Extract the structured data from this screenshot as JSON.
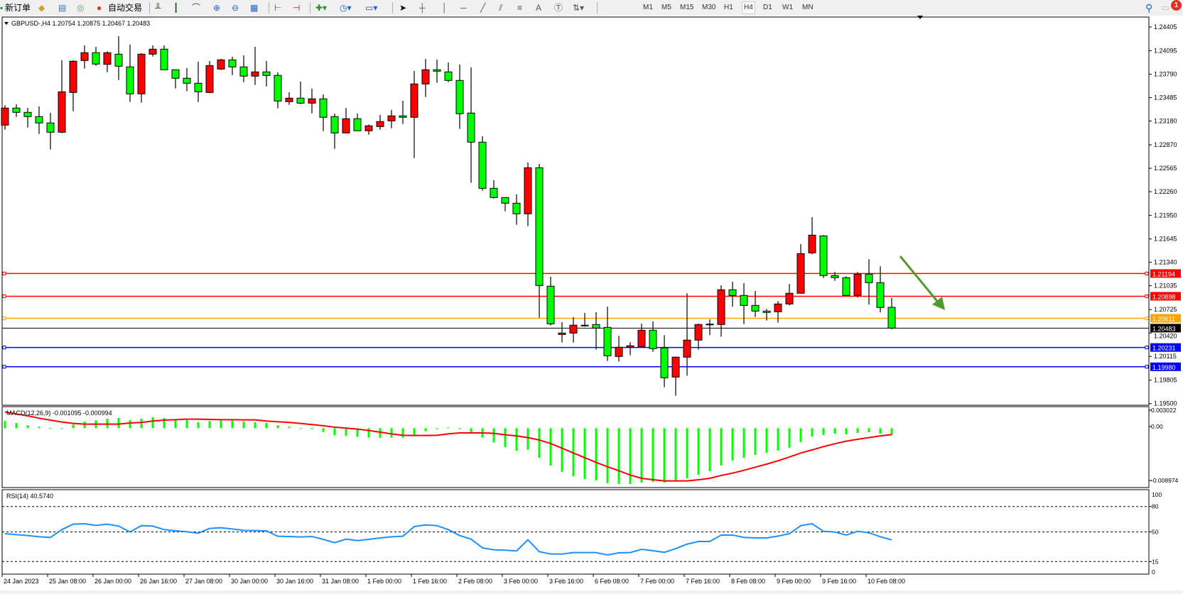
{
  "toolbar": {
    "new_order": "新订单",
    "auto_trade": "自动交易",
    "timeframes": [
      "M1",
      "M5",
      "M15",
      "M30",
      "H1",
      "H4",
      "D1",
      "W1",
      "MN"
    ],
    "active_timeframe": "H4",
    "notification_count": "1",
    "icons": [
      "new-order-icon",
      "market-watch-icon",
      "navigator-icon",
      "signals-icon",
      "auto-trade-icon",
      "bar-chart-icon",
      "candlestick-icon",
      "line-chart-icon",
      "zoom-in-icon",
      "zoom-out-icon",
      "tile-windows-icon",
      "chart-shift-icon",
      "autoscroll-icon",
      "indicators-icon",
      "periods-icon",
      "templates-icon",
      "cursor-icon",
      "crosshair-icon",
      "vertical-line-icon",
      "horizontal-line-icon",
      "trendline-icon",
      "equidistant-channel-icon",
      "fibonacci-icon",
      "text-icon",
      "text-label-icon",
      "arrows-icon",
      "search-icon",
      "chat-icon"
    ]
  },
  "chart": {
    "symbol_info": "GBPUSD-,H4  1.20754 1.20875 1.20467 1.20483"
  },
  "colors": {
    "bull": "#ff0000",
    "bear": "#00ff00",
    "macd_histogram": "#00ff00",
    "macd_signal": "#ff0000",
    "rsi": "#1e90ff",
    "arrow": "#4f9a2f"
  },
  "chart_data": {
    "type": "candlestick",
    "candle_colors": "red = rising, green = falling",
    "ylim": [
      1.195,
      1.24405
    ],
    "price_ticks": [
      "1.24405",
      "1.24095",
      "1.23790",
      "1.23485",
      "1.23180",
      "1.22870",
      "1.22565",
      "1.22260",
      "1.21950",
      "1.21645",
      "1.21340",
      "1.21035",
      "1.20725",
      "1.20420",
      "1.20115",
      "1.19805",
      "1.19500"
    ],
    "ohlc": [
      [
        1.23127,
        1.23386,
        1.23068,
        1.23349
      ],
      [
        1.23349,
        1.23398,
        1.23234,
        1.23293
      ],
      [
        1.23293,
        1.23351,
        1.23095,
        1.23238
      ],
      [
        1.23238,
        1.2337,
        1.23012,
        1.23155
      ],
      [
        1.23155,
        1.23287,
        1.22809,
        1.23034
      ],
      [
        1.23034,
        1.23971,
        1.23022,
        1.23561
      ],
      [
        1.23552,
        1.23971,
        1.23308,
        1.23959
      ],
      [
        1.23968,
        1.24165,
        1.23863,
        1.2407
      ],
      [
        1.2407,
        1.24146,
        1.239,
        1.23922
      ],
      [
        1.23918,
        1.24088,
        1.23816,
        1.2407
      ],
      [
        1.24051,
        1.24285,
        1.23715,
        1.23894
      ],
      [
        1.23885,
        1.24174,
        1.23428,
        1.23534
      ],
      [
        1.23534,
        1.24063,
        1.23419,
        1.24051
      ],
      [
        1.24051,
        1.24165,
        1.2402,
        1.24116
      ],
      [
        1.24116,
        1.24165,
        1.23848,
        1.23848
      ],
      [
        1.23848,
        1.23848,
        1.23604,
        1.23737
      ],
      [
        1.23737,
        1.23869,
        1.23567,
        1.23672
      ],
      [
        1.23672,
        1.23952,
        1.23428,
        1.23561
      ],
      [
        1.23552,
        1.23961,
        1.23543,
        1.23903
      ],
      [
        1.23857,
        1.23989,
        1.23844,
        1.23977
      ],
      [
        1.23977,
        1.24017,
        1.23779,
        1.23885
      ],
      [
        1.23885,
        1.24035,
        1.23687,
        1.23765
      ],
      [
        1.23765,
        1.24146,
        1.2365,
        1.2382
      ],
      [
        1.2382,
        1.23961,
        1.23631,
        1.23774
      ],
      [
        1.23774,
        1.23814,
        1.23345,
        1.23441
      ],
      [
        1.23432,
        1.23555,
        1.23391,
        1.23478
      ],
      [
        1.23478,
        1.23693,
        1.234,
        1.23413
      ],
      [
        1.23413,
        1.23601,
        1.2328,
        1.23469
      ],
      [
        1.23469,
        1.23527,
        1.23049,
        1.23229
      ],
      [
        1.23238,
        1.23278,
        1.22818,
        1.23025
      ],
      [
        1.23025,
        1.23351,
        1.23016,
        1.2321
      ],
      [
        1.2321,
        1.23278,
        1.23053,
        1.23053
      ],
      [
        1.23053,
        1.23136,
        1.23003,
        1.23118
      ],
      [
        1.23108,
        1.23259,
        1.23068,
        1.23173
      ],
      [
        1.23182,
        1.23324,
        1.23086,
        1.23247
      ],
      [
        1.23247,
        1.23444,
        1.23142,
        1.23229
      ],
      [
        1.23229,
        1.23832,
        1.22698,
        1.23663
      ],
      [
        1.23663,
        1.23989,
        1.23493,
        1.23848
      ],
      [
        1.23848,
        1.2398,
        1.23678,
        1.23829
      ],
      [
        1.2382,
        1.23943,
        1.23687,
        1.23709
      ],
      [
        1.23709,
        1.23915,
        1.23077,
        1.23275
      ],
      [
        1.23284,
        1.23878,
        1.22375,
        1.22905
      ],
      [
        1.22905,
        1.22982,
        1.22273,
        1.22304
      ],
      [
        1.22304,
        1.22409,
        1.22171,
        1.22184
      ],
      [
        1.22184,
        1.22184,
        1.22005,
        1.2211
      ],
      [
        1.2211,
        1.22224,
        1.21829,
        1.21972
      ],
      [
        1.21972,
        1.2264,
        1.21811,
        1.22572
      ],
      [
        1.22572,
        1.22621,
        1.20619,
        1.21038
      ],
      [
        1.21029,
        1.21152,
        1.20517,
        1.20539
      ],
      [
        1.204,
        1.2056,
        1.20295,
        1.20419
      ],
      [
        1.20419,
        1.20625,
        1.20295,
        1.20521
      ],
      [
        1.20521,
        1.20681,
        1.20502,
        1.20521
      ],
      [
        1.2053,
        1.2069,
        1.20203,
        1.20484
      ],
      [
        1.20493,
        1.20764,
        1.20055,
        1.20123
      ],
      [
        1.20114,
        1.20382,
        1.20049,
        1.20234
      ],
      [
        1.20234,
        1.20299,
        1.20129,
        1.20253
      ],
      [
        1.20243,
        1.20542,
        1.20234,
        1.20456
      ],
      [
        1.20456,
        1.2057,
        1.20175,
        1.20216
      ],
      [
        1.20225,
        1.20391,
        1.19713,
        1.19837
      ],
      [
        1.19846,
        1.20114,
        1.19602,
        1.20105
      ],
      [
        1.20105,
        1.20937,
        1.19864,
        1.20327
      ],
      [
        1.20327,
        1.20542,
        1.20203,
        1.2053
      ],
      [
        1.20526,
        1.20597,
        1.20391,
        1.20535
      ],
      [
        1.2053,
        1.21041,
        1.20371,
        1.20983
      ],
      [
        1.20983,
        1.21087,
        1.20761,
        1.20909
      ],
      [
        1.20909,
        1.21069,
        1.20535,
        1.20779
      ],
      [
        1.20779,
        1.20967,
        1.20628,
        1.20705
      ],
      [
        1.20705,
        1.20733,
        1.20582,
        1.20687
      ],
      [
        1.20696,
        1.20835,
        1.20554,
        1.20798
      ],
      [
        1.20798,
        1.21059,
        1.20779,
        1.20937
      ],
      [
        1.20937,
        1.21577,
        1.20937,
        1.21454
      ],
      [
        1.21463,
        1.21928,
        1.21445,
        1.21694
      ],
      [
        1.21685,
        1.21694,
        1.21136,
        1.21168
      ],
      [
        1.21168,
        1.21214,
        1.21099,
        1.2114
      ],
      [
        1.2114,
        1.21158,
        1.20909,
        1.20909
      ],
      [
        1.20909,
        1.21214,
        1.20881,
        1.21186
      ],
      [
        1.21186,
        1.2138,
        1.20789,
        1.21075
      ],
      [
        1.21075,
        1.21288,
        1.20687,
        1.20752
      ],
      [
        1.20754,
        1.20875,
        1.20467,
        1.20483
      ]
    ],
    "horizontal_lines": [
      {
        "price": "1.21194",
        "color": "#ff0000"
      },
      {
        "price": "1.20898",
        "color": "#ff0000"
      },
      {
        "price": "1.20611",
        "color": "#ffa500"
      },
      {
        "price": "1.20231",
        "color": "#0000ff"
      },
      {
        "price": "1.19980",
        "color": "#0000ff"
      }
    ],
    "current_price": "1.20483",
    "time_labels": [
      "24 Jan 2023",
      "25 Jan 08:00",
      "26 Jan 00:00",
      "26 Jan 16:00",
      "27 Jan 08:00",
      "30 Jan 00:00",
      "30 Jan 16:00",
      "31 Jan 08:00",
      "1 Feb 00:00",
      "1 Feb 16:00",
      "2 Feb 08:00",
      "3 Feb 00:00",
      "3 Feb 16:00",
      "6 Feb 08:00",
      "7 Feb 00:00",
      "7 Feb 16:00",
      "8 Feb 08:00",
      "9 Feb 00:00",
      "9 Feb 16:00",
      "10 Feb 08:00"
    ],
    "macd": {
      "label": "MACD(12,26,9) -0.001095 -0.000994",
      "axis_labels": [
        "0.003022",
        "0.00",
        "-0.008974"
      ],
      "histogram": [
        0.0011,
        0.0008,
        0.00044,
        0.00022,
        4e-05,
        0,
        0.00055,
        0.00102,
        0.0012,
        0.00146,
        0.00157,
        0.00124,
        0.00146,
        0.00168,
        0.00157,
        0.00139,
        0.00124,
        0.00091,
        0.0011,
        0.00117,
        0.00117,
        0.00102,
        0.00091,
        0.0008,
        0.00044,
        0.00022,
        0,
        -0.00015,
        -0.00058,
        -0.0011,
        -0.00117,
        -0.00135,
        -0.00146,
        -0.0015,
        -0.00146,
        -0.00146,
        -0.0011,
        -0.00047,
        -0.00015,
        0.00011,
        -0.00015,
        -0.00066,
        -0.00146,
        -0.00219,
        -0.00292,
        -0.00347,
        -0.00332,
        -0.00456,
        -0.00577,
        -0.00675,
        -0.00741,
        -0.00785,
        -0.00807,
        -0.0085,
        -0.00861,
        -0.00861,
        -0.0084,
        -0.00829,
        -0.0084,
        -0.00818,
        -0.00774,
        -0.00719,
        -0.00664,
        -0.00577,
        -0.005,
        -0.00456,
        -0.00412,
        -0.0038,
        -0.00347,
        -0.00303,
        -0.00215,
        -0.00128,
        -0.00106,
        -0.00084,
        -0.00095,
        -0.00073,
        -0.00062,
        -0.00084,
        -0.001095
      ],
      "signal": [
        0.00248,
        0.00219,
        0.0019,
        0.00153,
        0.00124,
        0.00095,
        0.00073,
        0.00062,
        0.00062,
        0.00062,
        0.00062,
        0.0008,
        0.00088,
        0.0011,
        0.00124,
        0.00131,
        0.00139,
        0.00139,
        0.00135,
        0.00131,
        0.00131,
        0.00128,
        0.00128,
        0.0011,
        0.00099,
        0.00088,
        0.00073,
        0.00055,
        0.00037,
        0.00015,
        0,
        -0.00015,
        -0.00037,
        -0.00062,
        -0.00088,
        -0.0011,
        -0.00113,
        -0.00113,
        -0.0011,
        -0.00088,
        -0.00073,
        -0.00073,
        -0.00073,
        -0.0008,
        -0.00102,
        -0.0012,
        -0.00146,
        -0.00183,
        -0.00237,
        -0.0031,
        -0.00383,
        -0.00456,
        -0.00529,
        -0.00595,
        -0.00657,
        -0.00723,
        -0.00774,
        -0.00796,
        -0.00814,
        -0.00814,
        -0.00814,
        -0.00796,
        -0.00774,
        -0.0073,
        -0.00694,
        -0.0065,
        -0.00602,
        -0.00555,
        -0.00504,
        -0.00445,
        -0.00383,
        -0.00336,
        -0.00285,
        -0.00241,
        -0.00201,
        -0.00172,
        -0.00146,
        -0.0012,
        -0.000994
      ]
    },
    "rsi": {
      "label": "RSI(14) 40.5740",
      "levels": [
        80,
        50,
        15
      ],
      "axis_labels": [
        "100",
        "80",
        "50",
        "15",
        "0"
      ],
      "values": [
        47.9,
        46.8,
        45.7,
        44.3,
        43.5,
        52.7,
        59.1,
        59.6,
        57.7,
        59.1,
        56.9,
        49.9,
        57.4,
        56.9,
        52.7,
        51.3,
        50.2,
        48.5,
        54.1,
        54.9,
        53.5,
        51.8,
        51.6,
        51.3,
        44.9,
        44.6,
        44.0,
        44.6,
        41.2,
        37.3,
        41.5,
        39.8,
        41.2,
        42.9,
        44.3,
        44.9,
        56.3,
        58.3,
        57.4,
        52.7,
        45.7,
        41.5,
        31.2,
        28.9,
        28.4,
        27.5,
        40.7,
        26.7,
        23.9,
        23.9,
        25.6,
        25.6,
        25.6,
        22.8,
        25.3,
        25.6,
        29.5,
        27.8,
        25.9,
        30.3,
        35.6,
        38.7,
        38.7,
        46.3,
        46.3,
        43.5,
        42.9,
        42.9,
        45.1,
        47.9,
        57.4,
        59.6,
        50.7,
        49.9,
        46.3,
        50.7,
        49.0,
        44.3,
        40.6
      ]
    }
  }
}
